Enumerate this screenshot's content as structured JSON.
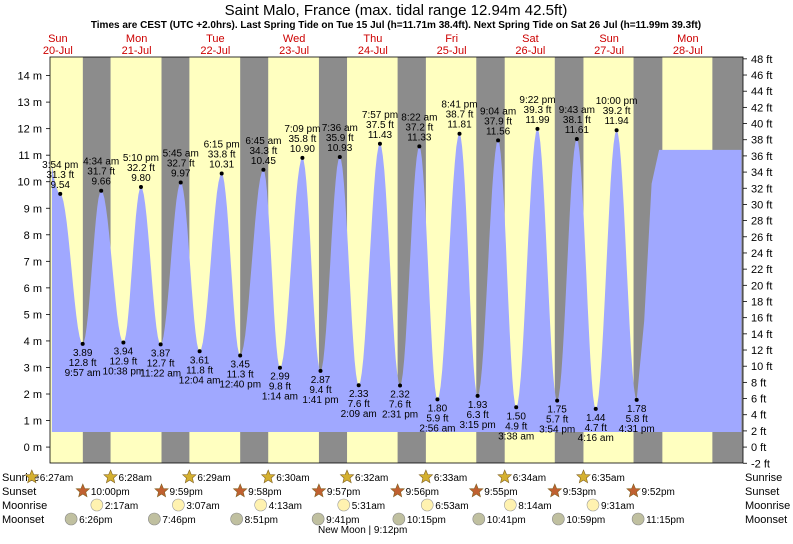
{
  "chart_data": {
    "type": "area",
    "title": "Saint Malo, France (max. tidal range 12.94m 42.5ft)",
    "subtitle": "Times are CEST (UTC +2.0hrs). Last Spring Tide on Tue 15 Jul (h=11.71m 38.4ft). Next Spring Tide on Sat 26 Jul (h=11.99m 39.3ft)",
    "ylim_m": [
      -0.6,
      14.7
    ],
    "y_ticks_m": [
      0,
      1,
      2,
      3,
      4,
      5,
      6,
      7,
      8,
      9,
      10,
      11,
      12,
      13,
      14
    ],
    "y_ticks_ft": [
      -2,
      0,
      2,
      4,
      6,
      8,
      10,
      12,
      14,
      16,
      18,
      20,
      22,
      24,
      26,
      28,
      30,
      32,
      34,
      36,
      38,
      40,
      42,
      44,
      46,
      48
    ],
    "x_start_day": 0.5,
    "x_end_day": 9.3,
    "days": [
      {
        "name": "Sun",
        "date": "20-Jul"
      },
      {
        "name": "Mon",
        "date": "21-Jul"
      },
      {
        "name": "Tue",
        "date": "22-Jul"
      },
      {
        "name": "Wed",
        "date": "23-Jul"
      },
      {
        "name": "Thu",
        "date": "24-Jul"
      },
      {
        "name": "Fri",
        "date": "25-Jul"
      },
      {
        "name": "Sat",
        "date": "26-Jul"
      },
      {
        "name": "Sun",
        "date": "27-Jul"
      },
      {
        "name": "Mon",
        "date": "28-Jul"
      }
    ],
    "daylight": [
      {
        "rise": 0.269,
        "set": 0.917
      },
      {
        "rise": 1.269,
        "set": 1.916
      },
      {
        "rise": 2.27,
        "set": 2.915
      },
      {
        "rise": 3.271,
        "set": 3.915
      },
      {
        "rise": 4.272,
        "set": 4.914
      },
      {
        "rise": 5.273,
        "set": 5.913
      },
      {
        "rise": 6.274,
        "set": 6.91
      },
      {
        "rise": 7.274,
        "set": 7.91
      },
      {
        "rise": 8.276,
        "set": 8.911
      }
    ],
    "tides": [
      {
        "type": "high",
        "t": 0.63,
        "m": 9.54,
        "ft": "31.3 ft",
        "time": "3:54 pm"
      },
      {
        "type": "low",
        "t": 0.915,
        "m": 3.89,
        "ft": "12.8 ft",
        "time": "9:57 am"
      },
      {
        "type": "high",
        "t": 1.15,
        "m": 9.66,
        "ft": "31.7 ft",
        "time": "4:34 am"
      },
      {
        "type": "low",
        "t": 1.432,
        "m": 3.94,
        "ft": "12.9 ft",
        "time": "10:38 pm"
      },
      {
        "type": "high",
        "t": 1.655,
        "m": 9.8,
        "ft": "32.2 ft",
        "time": "5:10 pm"
      },
      {
        "type": "low",
        "t": 1.905,
        "m": 3.87,
        "ft": "12.7 ft",
        "time": "11:22 am"
      },
      {
        "type": "high",
        "t": 2.16,
        "m": 9.97,
        "ft": "32.7 ft",
        "time": "5:45 am"
      },
      {
        "type": "low",
        "t": 2.4,
        "m": 3.61,
        "ft": "11.8 ft",
        "time": "12:04 am"
      },
      {
        "type": "high",
        "t": 2.68,
        "m": 10.31,
        "ft": "33.8 ft",
        "time": "6:15 pm"
      },
      {
        "type": "low",
        "t": 2.915,
        "m": 3.45,
        "ft": "11.3 ft",
        "time": "12:40 pm"
      },
      {
        "type": "high",
        "t": 3.21,
        "m": 10.45,
        "ft": "34.3 ft",
        "time": "6:45 am"
      },
      {
        "type": "low",
        "t": 3.42,
        "m": 2.99,
        "ft": "9.8 ft",
        "time": "1:14 am"
      },
      {
        "type": "high",
        "t": 3.705,
        "m": 10.9,
        "ft": "35.8 ft",
        "time": "7:09 pm"
      },
      {
        "type": "low",
        "t": 3.935,
        "m": 2.87,
        "ft": "9.4 ft",
        "time": "1:41 pm"
      },
      {
        "type": "high",
        "t": 4.18,
        "m": 10.93,
        "ft": "35.9 ft",
        "time": "7:36 am"
      },
      {
        "type": "low",
        "t": 4.42,
        "m": 2.33,
        "ft": "7.6 ft",
        "time": "2:09 am"
      },
      {
        "type": "high",
        "t": 4.69,
        "m": 11.43,
        "ft": "37.5 ft",
        "time": "7:57 pm"
      },
      {
        "type": "low",
        "t": 4.945,
        "m": 2.32,
        "ft": "7.6 ft",
        "time": "2:31 pm"
      },
      {
        "type": "high",
        "t": 5.19,
        "m": 11.33,
        "ft": "37.2 ft",
        "time": "8:22 am"
      },
      {
        "type": "low",
        "t": 5.42,
        "m": 1.8,
        "ft": "5.9 ft",
        "time": "2:56 am"
      },
      {
        "type": "high",
        "t": 5.7,
        "m": 11.81,
        "ft": "38.7 ft",
        "time": "8:41 pm"
      },
      {
        "type": "low",
        "t": 5.93,
        "m": 1.93,
        "ft": "6.3 ft",
        "time": "3:15 pm"
      },
      {
        "type": "high",
        "t": 6.19,
        "m": 11.56,
        "ft": "37.9 ft",
        "time": "9:04 am"
      },
      {
        "type": "low",
        "t": 6.42,
        "m": 1.5,
        "ft": "4.9 ft",
        "time": "3:38 am"
      },
      {
        "type": "high",
        "t": 6.69,
        "m": 11.99,
        "ft": "39.3 ft",
        "time": "9:22 pm"
      },
      {
        "type": "low",
        "t": 6.94,
        "m": 1.75,
        "ft": "5.7 ft",
        "time": "3:54 pm"
      },
      {
        "type": "high",
        "t": 7.19,
        "m": 11.61,
        "ft": "38.1 ft",
        "time": "9:43 am"
      },
      {
        "type": "low",
        "t": 7.43,
        "m": 1.44,
        "ft": "4.7 ft",
        "time": "4:16 am"
      },
      {
        "type": "high",
        "t": 7.695,
        "m": 11.94,
        "ft": "39.2 ft",
        "time": "10:00 pm"
      },
      {
        "type": "low",
        "t": 7.95,
        "m": 1.78,
        "ft": "5.8 ft",
        "time": "4:31 pm"
      }
    ],
    "rows": {
      "sunrise_label": "Sunrise",
      "sunset_label": "Sunset",
      "moonrise_label": "Moonrise",
      "moonset_label": "Moonset",
      "sunrise": [
        {
          "t": 0.269,
          "time": "6:27am"
        },
        {
          "t": 1.269,
          "time": "6:28am"
        },
        {
          "t": 2.27,
          "time": "6:29am"
        },
        {
          "t": 3.271,
          "time": "6:30am"
        },
        {
          "t": 4.272,
          "time": "6:32am"
        },
        {
          "t": 5.273,
          "time": "6:33am"
        },
        {
          "t": 6.274,
          "time": "6:34am"
        },
        {
          "t": 7.274,
          "time": "6:35am"
        }
      ],
      "sunset": [
        {
          "t": 0.917,
          "time": "10:00pm"
        },
        {
          "t": 1.916,
          "time": "9:59pm"
        },
        {
          "t": 2.915,
          "time": "9:58pm"
        },
        {
          "t": 3.915,
          "time": "9:57pm"
        },
        {
          "t": 4.914,
          "time": "9:56pm"
        },
        {
          "t": 5.913,
          "time": "9:55pm"
        },
        {
          "t": 6.91,
          "time": "9:53pm"
        },
        {
          "t": 7.91,
          "time": "9:52pm"
        }
      ],
      "moonrise": [
        {
          "t": 1.095,
          "time": "2:17am"
        },
        {
          "t": 2.13,
          "time": "3:07am"
        },
        {
          "t": 3.175,
          "time": "4:13am"
        },
        {
          "t": 4.23,
          "time": "5:31am"
        },
        {
          "t": 5.29,
          "time": "6:53am"
        },
        {
          "t": 6.345,
          "time": "8:14am"
        },
        {
          "t": 7.395,
          "time": "9:31am"
        }
      ],
      "moonset": [
        {
          "t": 0.768,
          "time": "6:26pm"
        },
        {
          "t": 1.825,
          "time": "7:46pm"
        },
        {
          "t": 2.87,
          "time": "8:51pm"
        },
        {
          "t": 3.905,
          "time": "9:41pm"
        },
        {
          "t": 4.93,
          "time": "10:15pm"
        },
        {
          "t": 5.945,
          "time": "10:41pm"
        },
        {
          "t": 6.955,
          "time": "10:59pm"
        },
        {
          "t": 7.968,
          "time": "11:15pm"
        }
      ],
      "moon_phase": "New Moon | 9:12pm"
    },
    "colors": {
      "night": "#8c8c8c",
      "day": "#ffffc0",
      "water": "#a0a8ff",
      "day_label": "#cc0000",
      "sun_icon": "#d4b030",
      "sunset_icon": "#c06030",
      "moonrise_icon": "#fff2b0",
      "moonset_icon": "#c0c0a0"
    }
  }
}
